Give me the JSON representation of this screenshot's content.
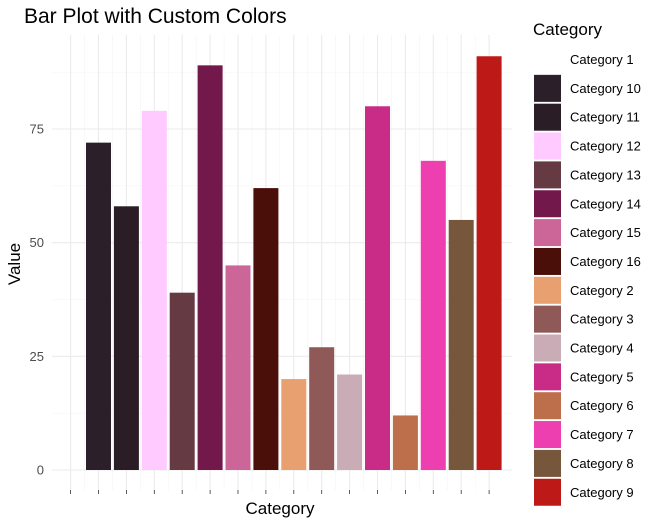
{
  "chart_data": {
    "type": "bar",
    "title": "Bar Plot with Custom Colors",
    "xlabel": "Category",
    "ylabel": "Value",
    "ylim": [
      0,
      95
    ],
    "yticks": [
      0,
      25,
      50,
      75
    ],
    "grid": true,
    "legend": {
      "title": "Category",
      "placement": "right",
      "entries": [
        {
          "label": "Category 1",
          "color": "#FFFFFF"
        },
        {
          "label": "Category 10",
          "color": "#2B1F29"
        },
        {
          "label": "Category 11",
          "color": "#2A1D26"
        },
        {
          "label": "Category 12",
          "color": "#FECAFF"
        },
        {
          "label": "Category 13",
          "color": "#653A42"
        },
        {
          "label": "Category 14",
          "color": "#72184A"
        },
        {
          "label": "Category 15",
          "color": "#CC6699"
        },
        {
          "label": "Category 16",
          "color": "#4A0F08"
        },
        {
          "label": "Category 2",
          "color": "#E8A070"
        },
        {
          "label": "Category 3",
          "color": "#8E5957"
        },
        {
          "label": "Category 4",
          "color": "#C9ACB6"
        },
        {
          "label": "Category 5",
          "color": "#C92C86"
        },
        {
          "label": "Category 6",
          "color": "#BC6F4A"
        },
        {
          "label": "Category 7",
          "color": "#ED3FB0"
        },
        {
          "label": "Category 8",
          "color": "#77573C"
        },
        {
          "label": "Category 9",
          "color": "#BD1917"
        }
      ]
    },
    "bars": [
      {
        "category": "Category 1",
        "value": 0,
        "color": "#FFFFFF"
      },
      {
        "category": "Category 10",
        "value": 72,
        "color": "#2B1F29"
      },
      {
        "category": "Category 11",
        "value": 58,
        "color": "#2A1D26"
      },
      {
        "category": "Category 12",
        "value": 79,
        "color": "#FECAFF"
      },
      {
        "category": "Category 13",
        "value": 39,
        "color": "#653A42"
      },
      {
        "category": "Category 14",
        "value": 89,
        "color": "#72184A"
      },
      {
        "category": "Category 15",
        "value": 45,
        "color": "#CC6699"
      },
      {
        "category": "Category 16",
        "value": 62,
        "color": "#4A0F08"
      },
      {
        "category": "Category 2",
        "value": 20,
        "color": "#E8A070"
      },
      {
        "category": "Category 3",
        "value": 27,
        "color": "#8E5957"
      },
      {
        "category": "Category 4",
        "value": 21,
        "color": "#C9ACB6"
      },
      {
        "category": "Category 5",
        "value": 80,
        "color": "#C92C86"
      },
      {
        "category": "Category 6",
        "value": 12,
        "color": "#BC6F4A"
      },
      {
        "category": "Category 7",
        "value": 68,
        "color": "#ED3FB0"
      },
      {
        "category": "Category 8",
        "value": 55,
        "color": "#77573C"
      },
      {
        "category": "Category 9",
        "value": 91,
        "color": "#BD1917"
      }
    ]
  }
}
